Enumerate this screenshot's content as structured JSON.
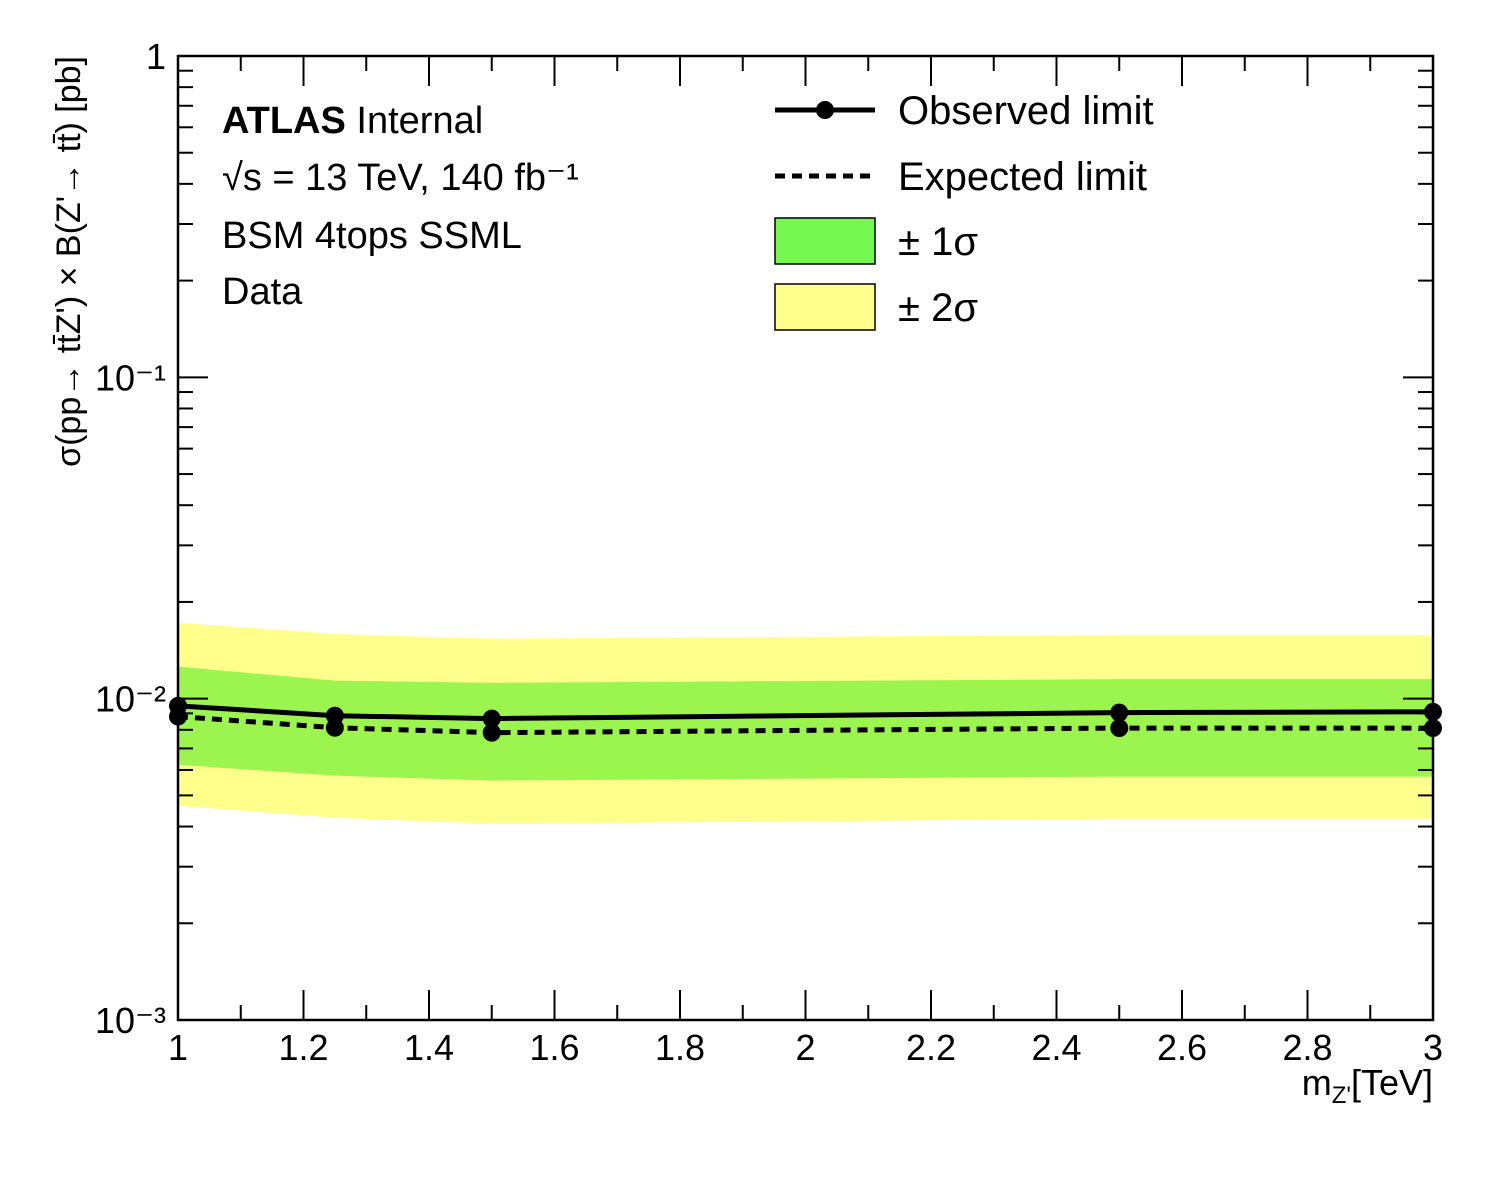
{
  "chart_data": {
    "type": "line",
    "annotations": {
      "experiment": "ATLAS",
      "status": "Internal",
      "energy": "√s = 13 TeV, 140 fb⁻¹",
      "analysis": "BSM 4tops SSML",
      "dataset": "Data"
    },
    "y_label": "σ(pp→ tt̄Z') × B(Z'→ tt̄) [pb]",
    "x_label": {
      "main": "m",
      "sub": "Z'",
      "unit": "[TeV]"
    },
    "x": [
      1,
      1.25,
      1.5,
      2.5,
      3
    ],
    "series": [
      {
        "name": "Observed limit",
        "color": "#000000",
        "style": "solid",
        "values": [
          0.0095,
          0.00885,
          0.00867,
          0.00905,
          0.0091
        ]
      },
      {
        "name": "Expected limit",
        "color": "#000000",
        "style": "dotted",
        "values": [
          0.0088,
          0.00812,
          0.00784,
          0.0081,
          0.0081
        ]
      }
    ],
    "bands": [
      {
        "name": "± 1σ",
        "color": "#9cf44f",
        "legend_color": "#76f74f",
        "upper": [
          0.01258,
          0.01138,
          0.0112,
          0.0115,
          0.0115
        ],
        "lower": [
          0.00623,
          0.00576,
          0.00556,
          0.00572,
          0.00572
        ]
      },
      {
        "name": "± 2σ",
        "color": "#ffff8c",
        "legend_color": "#ffff8c",
        "upper": [
          0.01724,
          0.0159,
          0.01537,
          0.0158,
          0.0158
        ],
        "lower": [
          0.00464,
          0.00426,
          0.00408,
          0.00423,
          0.00423
        ]
      }
    ],
    "xlim": [
      1,
      3
    ],
    "xticks": [
      1,
      1.2,
      1.4,
      1.6,
      1.8,
      2,
      2.2,
      2.4,
      2.6,
      2.8,
      3
    ],
    "ylim": [
      0.001,
      1
    ],
    "yticks": [
      {
        "value": 0.001,
        "label": "10⁻³"
      },
      {
        "value": 0.01,
        "label": "10⁻²"
      },
      {
        "value": 0.1,
        "label": "10⁻¹"
      },
      1
    ],
    "log_y": true,
    "grid": false,
    "legend": "top-right"
  }
}
